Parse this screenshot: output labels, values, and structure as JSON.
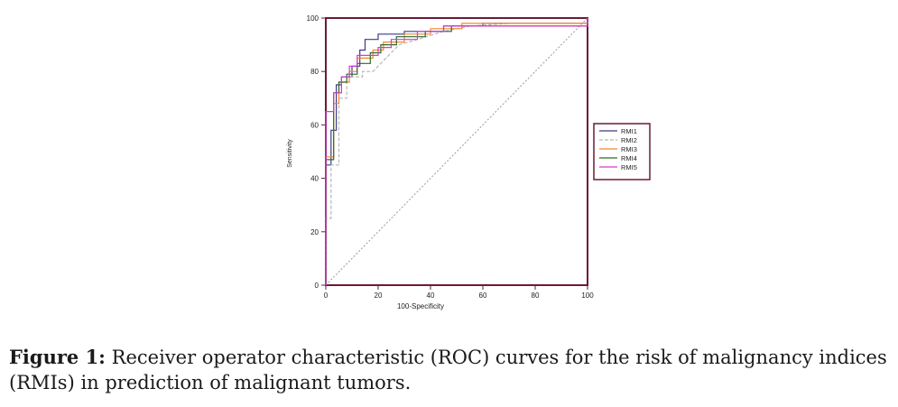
{
  "figure": {
    "label": "Figure 1:",
    "caption": "Receiver operator characteristic (ROC) curves for the risk of malignancy indices (RMIs) in prediction of malignant tumors."
  },
  "chart_data": {
    "type": "line",
    "title": "",
    "xlabel": "100-Specificity",
    "ylabel": "Sensitivity",
    "xlim": [
      0,
      100
    ],
    "ylim": [
      0,
      100
    ],
    "xticks": [
      0,
      20,
      40,
      60,
      80,
      100
    ],
    "yticks": [
      0,
      20,
      40,
      60,
      80,
      100
    ],
    "x_tick_labels": [
      "0",
      "20",
      "40",
      "60",
      "80",
      "100"
    ],
    "y_tick_labels": [
      "0",
      "20",
      "40",
      "60",
      "80",
      "100"
    ],
    "legend_position": "right",
    "reference_line": {
      "name": "diagonal",
      "points": [
        [
          0,
          0
        ],
        [
          100,
          100
        ]
      ],
      "color": "#9a9a9a"
    },
    "series": [
      {
        "name": "RMI1",
        "color": "#3b3b8a",
        "dash": "solid",
        "points": [
          [
            0,
            0
          ],
          [
            0,
            45
          ],
          [
            2,
            45
          ],
          [
            2,
            58
          ],
          [
            4,
            58
          ],
          [
            4,
            75
          ],
          [
            6,
            75
          ],
          [
            6,
            78
          ],
          [
            10,
            78
          ],
          [
            10,
            82
          ],
          [
            13,
            82
          ],
          [
            13,
            88
          ],
          [
            15,
            88
          ],
          [
            15,
            92
          ],
          [
            20,
            92
          ],
          [
            20,
            94
          ],
          [
            30,
            94
          ],
          [
            30,
            95
          ],
          [
            45,
            95
          ],
          [
            45,
            97
          ],
          [
            60,
            97
          ],
          [
            60,
            98
          ],
          [
            100,
            98
          ],
          [
            100,
            100
          ]
        ]
      },
      {
        "name": "RMI2",
        "color": "#b8b8b8",
        "dash": "4,2",
        "points": [
          [
            0,
            0
          ],
          [
            0,
            25
          ],
          [
            2,
            25
          ],
          [
            2,
            45
          ],
          [
            5,
            45
          ],
          [
            5,
            70
          ],
          [
            8,
            70
          ],
          [
            8,
            78
          ],
          [
            14,
            78
          ],
          [
            14,
            80
          ],
          [
            18,
            80
          ],
          [
            20,
            82
          ],
          [
            24,
            86
          ],
          [
            28,
            90
          ],
          [
            35,
            92
          ],
          [
            45,
            95
          ],
          [
            55,
            97
          ],
          [
            70,
            98
          ],
          [
            100,
            98
          ],
          [
            100,
            100
          ]
        ]
      },
      {
        "name": "RMI3",
        "color": "#f08a2a",
        "dash": "solid",
        "points": [
          [
            0,
            0
          ],
          [
            0,
            48
          ],
          [
            3,
            48
          ],
          [
            3,
            68
          ],
          [
            5,
            68
          ],
          [
            5,
            76
          ],
          [
            9,
            76
          ],
          [
            9,
            80
          ],
          [
            12,
            80
          ],
          [
            12,
            85
          ],
          [
            18,
            85
          ],
          [
            18,
            88
          ],
          [
            22,
            88
          ],
          [
            22,
            91
          ],
          [
            30,
            91
          ],
          [
            30,
            94
          ],
          [
            40,
            94
          ],
          [
            40,
            96
          ],
          [
            52,
            96
          ],
          [
            52,
            98
          ],
          [
            100,
            98
          ],
          [
            100,
            100
          ]
        ]
      },
      {
        "name": "RMI4",
        "color": "#2a6a2a",
        "dash": "solid",
        "points": [
          [
            0,
            0
          ],
          [
            0,
            47
          ],
          [
            3,
            47
          ],
          [
            3,
            72
          ],
          [
            5,
            72
          ],
          [
            5,
            76
          ],
          [
            8,
            76
          ],
          [
            8,
            79
          ],
          [
            12,
            79
          ],
          [
            12,
            83
          ],
          [
            17,
            83
          ],
          [
            17,
            87
          ],
          [
            21,
            87
          ],
          [
            21,
            90
          ],
          [
            27,
            90
          ],
          [
            27,
            93
          ],
          [
            38,
            93
          ],
          [
            38,
            95
          ],
          [
            48,
            95
          ],
          [
            48,
            97
          ],
          [
            100,
            97
          ],
          [
            100,
            100
          ]
        ]
      },
      {
        "name": "RMI5",
        "color": "#d23ad2",
        "dash": "solid",
        "points": [
          [
            0,
            0
          ],
          [
            0,
            65
          ],
          [
            3,
            65
          ],
          [
            3,
            72
          ],
          [
            6,
            72
          ],
          [
            6,
            78
          ],
          [
            9,
            78
          ],
          [
            9,
            82
          ],
          [
            12,
            82
          ],
          [
            12,
            86
          ],
          [
            20,
            86
          ],
          [
            20,
            89
          ],
          [
            25,
            89
          ],
          [
            25,
            92
          ],
          [
            35,
            92
          ],
          [
            35,
            95
          ],
          [
            45,
            95
          ],
          [
            45,
            97
          ],
          [
            100,
            97
          ],
          [
            100,
            100
          ]
        ]
      }
    ]
  }
}
